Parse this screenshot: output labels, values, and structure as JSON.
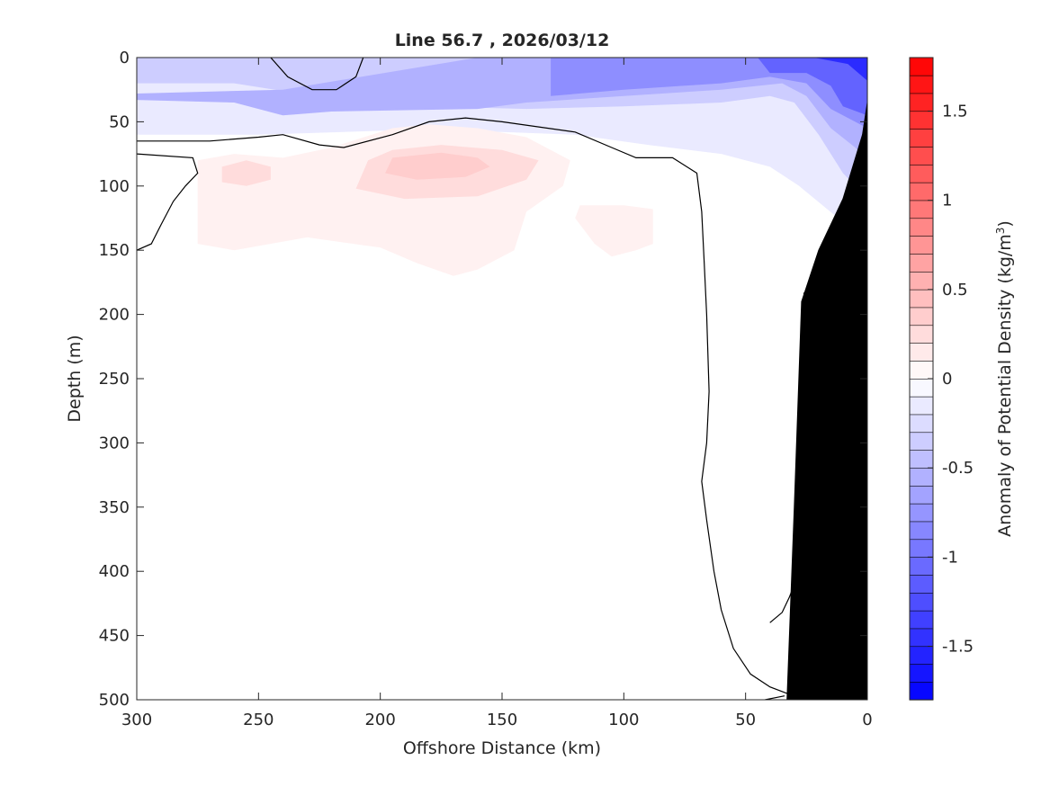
{
  "chart_data": {
    "type": "heatmap",
    "title": "Line 56.7 , 2026/03/12",
    "xlabel": "Offshore Distance (km)",
    "ylabel": "Depth (m)",
    "xlim": [
      300,
      0
    ],
    "ylim": [
      500,
      0
    ],
    "x_ticks": [
      "300",
      "250",
      "200",
      "150",
      "100",
      "50",
      "0"
    ],
    "y_ticks": [
      "0",
      "50",
      "100",
      "150",
      "200",
      "250",
      "300",
      "350",
      "400",
      "450",
      "500"
    ],
    "colorbar": {
      "label": "Anomaly of Potential Density (kg/m",
      "label_sup": "3",
      "label_end": ")",
      "range": [
        -1.8,
        1.8
      ],
      "step": 0.1,
      "ticks": [
        "1.5",
        "1",
        "0.5",
        "0",
        "-0.5",
        "-1",
        "-1.5"
      ],
      "low_color": "#0000ff",
      "high_color": "#ff0000"
    },
    "fields": [
      {
        "anomaly": -0.15,
        "points": [
          [
            300,
            0
          ],
          [
            0,
            0
          ],
          [
            0,
            140
          ],
          [
            12,
            125
          ],
          [
            28,
            100
          ],
          [
            40,
            85
          ],
          [
            60,
            75
          ],
          [
            90,
            68
          ],
          [
            120,
            60
          ],
          [
            150,
            58
          ],
          [
            200,
            57
          ],
          [
            250,
            60
          ],
          [
            300,
            60
          ]
        ]
      },
      {
        "anomaly": -0.35,
        "points": [
          [
            300,
            20
          ],
          [
            260,
            20
          ],
          [
            220,
            32
          ],
          [
            180,
            38
          ],
          [
            140,
            40
          ],
          [
            100,
            38
          ],
          [
            60,
            35
          ],
          [
            40,
            30
          ],
          [
            30,
            35
          ],
          [
            20,
            60
          ],
          [
            10,
            90
          ],
          [
            0,
            110
          ],
          [
            0,
            0
          ],
          [
            300,
            0
          ]
        ]
      },
      {
        "anomaly": -0.55,
        "points": [
          [
            300,
            33
          ],
          [
            260,
            35
          ],
          [
            240,
            45
          ],
          [
            220,
            42
          ],
          [
            160,
            40
          ],
          [
            140,
            35
          ],
          [
            100,
            30
          ],
          [
            60,
            25
          ],
          [
            35,
            20
          ],
          [
            25,
            30
          ],
          [
            15,
            55
          ],
          [
            5,
            70
          ],
          [
            0,
            80
          ],
          [
            0,
            0
          ],
          [
            160,
            0
          ],
          [
            240,
            25
          ],
          [
            300,
            28
          ]
        ]
      },
      {
        "anomaly": -0.8,
        "points": [
          [
            130,
            30
          ],
          [
            100,
            25
          ],
          [
            60,
            20
          ],
          [
            40,
            15
          ],
          [
            25,
            20
          ],
          [
            15,
            40
          ],
          [
            5,
            50
          ],
          [
            0,
            55
          ],
          [
            0,
            0
          ],
          [
            130,
            0
          ]
        ]
      },
      {
        "anomaly": -1.1,
        "points": [
          [
            40,
            12
          ],
          [
            25,
            12
          ],
          [
            15,
            22
          ],
          [
            10,
            38
          ],
          [
            0,
            45
          ],
          [
            0,
            0
          ],
          [
            45,
            0
          ]
        ]
      },
      {
        "anomaly": -1.5,
        "points": [
          [
            22,
            0
          ],
          [
            0,
            0
          ],
          [
            0,
            18
          ],
          [
            8,
            5
          ]
        ]
      },
      {
        "anomaly": 0.1,
        "points": [
          [
            275,
            80
          ],
          [
            260,
            75
          ],
          [
            240,
            78
          ],
          [
            220,
            70
          ],
          [
            195,
            55
          ],
          [
            180,
            52
          ],
          [
            160,
            55
          ],
          [
            140,
            62
          ],
          [
            122,
            80
          ],
          [
            125,
            100
          ],
          [
            140,
            120
          ],
          [
            145,
            150
          ],
          [
            160,
            165
          ],
          [
            170,
            170
          ],
          [
            185,
            160
          ],
          [
            200,
            148
          ],
          [
            230,
            140
          ],
          [
            260,
            150
          ],
          [
            275,
            145
          ],
          [
            275,
            120
          ]
        ]
      },
      {
        "anomaly": 0.1,
        "points": [
          [
            118,
            115
          ],
          [
            100,
            115
          ],
          [
            88,
            118
          ],
          [
            88,
            145
          ],
          [
            95,
            150
          ],
          [
            105,
            155
          ],
          [
            112,
            145
          ],
          [
            120,
            125
          ]
        ]
      },
      {
        "anomaly": 0.25,
        "points": [
          [
            265,
            85
          ],
          [
            255,
            80
          ],
          [
            245,
            85
          ],
          [
            245,
            95
          ],
          [
            255,
            100
          ],
          [
            265,
            97
          ]
        ]
      },
      {
        "anomaly": 0.25,
        "points": [
          [
            205,
            80
          ],
          [
            195,
            72
          ],
          [
            175,
            68
          ],
          [
            150,
            72
          ],
          [
            135,
            80
          ],
          [
            140,
            95
          ],
          [
            160,
            108
          ],
          [
            190,
            110
          ],
          [
            210,
            102
          ]
        ]
      },
      {
        "anomaly": 0.35,
        "points": [
          [
            195,
            78
          ],
          [
            175,
            74
          ],
          [
            160,
            78
          ],
          [
            155,
            85
          ],
          [
            165,
            93
          ],
          [
            185,
            95
          ],
          [
            198,
            90
          ]
        ]
      }
    ],
    "zero_contours": [
      [
        [
          300,
          65
        ],
        [
          270,
          65
        ],
        [
          250,
          62
        ],
        [
          240,
          60
        ],
        [
          225,
          68
        ],
        [
          215,
          70
        ],
        [
          195,
          60
        ],
        [
          180,
          50
        ],
        [
          165,
          47
        ],
        [
          150,
          50
        ],
        [
          120,
          58
        ],
        [
          105,
          70
        ],
        [
          95,
          78
        ],
        [
          80,
          78
        ],
        [
          70,
          90
        ],
        [
          68,
          120
        ],
        [
          67,
          160
        ],
        [
          66,
          200
        ],
        [
          65,
          260
        ],
        [
          66,
          300
        ],
        [
          68,
          330
        ],
        [
          66,
          360
        ],
        [
          63,
          400
        ],
        [
          60,
          430
        ],
        [
          55,
          460
        ],
        [
          48,
          480
        ],
        [
          40,
          490
        ],
        [
          33,
          495
        ]
      ],
      [
        [
          245,
          0
        ],
        [
          238,
          15
        ],
        [
          228,
          25
        ],
        [
          218,
          25
        ],
        [
          210,
          15
        ],
        [
          207,
          0
        ]
      ],
      [
        [
          300,
          150
        ],
        [
          294,
          145
        ],
        [
          290,
          130
        ],
        [
          285,
          112
        ],
        [
          280,
          100
        ],
        [
          275,
          90
        ],
        [
          277,
          78
        ],
        [
          300,
          75
        ]
      ],
      [
        [
          40,
          440
        ],
        [
          35,
          432
        ],
        [
          32,
          420
        ],
        [
          30,
          410
        ]
      ],
      [
        [
          26,
          200
        ],
        [
          26,
          183
        ]
      ],
      [
        [
          28,
          280
        ],
        [
          26,
          275
        ]
      ],
      [
        [
          42,
          500
        ],
        [
          34,
          497
        ]
      ]
    ],
    "bathymetry": [
      [
        33,
        500
      ],
      [
        30,
        350
      ],
      [
        27,
        190
      ],
      [
        20,
        150
      ],
      [
        10,
        110
      ],
      [
        2,
        60
      ],
      [
        0,
        35
      ],
      [
        0,
        500
      ]
    ]
  }
}
